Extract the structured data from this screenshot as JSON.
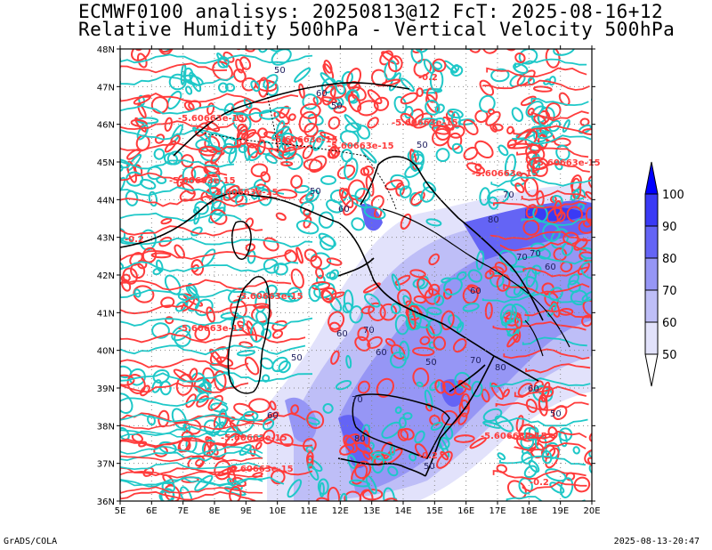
{
  "header": {
    "line1": "ECMWF0100 analisys: 20250813@12 FcT: 2025-08-16+12",
    "line2": "Relative Humidity 500hPa - Vertical Velocity 500hPa"
  },
  "footer": {
    "left": "GrADS/COLA",
    "right": "2025-08-13-20:47"
  },
  "map": {
    "lat_labels": [
      "48N",
      "47N",
      "46N",
      "45N",
      "44N",
      "43N",
      "42N",
      "41N",
      "40N",
      "39N",
      "38N",
      "37N",
      "36N"
    ],
    "lon_labels": [
      "5E",
      "6E",
      "7E",
      "8E",
      "9E",
      "10E",
      "11E",
      "12E",
      "13E",
      "14E",
      "15E",
      "16E",
      "17E",
      "18E",
      "19E",
      "20E"
    ],
    "colors": {
      "omega_neg": "#ff3b3b",
      "omega_pos": "#1ec8c8",
      "border": "#000000"
    }
  },
  "contour_labels": [
    {
      "text": "-5.60663e-15"
    },
    {
      "text": "-5.60663e-15"
    },
    {
      "text": "-5.60663e-15"
    },
    {
      "text": "-5.60663e-15"
    },
    {
      "text": "-5.60663e-15"
    },
    {
      "text": "-5.60663e-15"
    },
    {
      "text": "-5.60663e-15"
    },
    {
      "text": "-5.60663e-15"
    },
    {
      "text": "-5.60663e-15"
    },
    {
      "text": "-5.60663e-15"
    },
    {
      "text": "-5.60663e-15"
    },
    {
      "text": "-5.60663e-15"
    },
    {
      "text": "-5.60663e-15"
    },
    {
      "text": "-0.2"
    },
    {
      "text": "-0.2"
    },
    {
      "text": "-0.2"
    },
    {
      "text": "-0.2"
    }
  ],
  "rh_labels": [
    {
      "text": "50"
    },
    {
      "text": "50"
    },
    {
      "text": "50"
    },
    {
      "text": "50"
    },
    {
      "text": "60"
    },
    {
      "text": "60"
    },
    {
      "text": "70"
    },
    {
      "text": "70"
    },
    {
      "text": "80"
    },
    {
      "text": "70"
    },
    {
      "text": "60"
    },
    {
      "text": "60"
    },
    {
      "text": "70"
    },
    {
      "text": "50"
    },
    {
      "text": "60"
    },
    {
      "text": "70"
    },
    {
      "text": "80"
    },
    {
      "text": "50"
    },
    {
      "text": "60"
    },
    {
      "text": "50"
    },
    {
      "text": "60"
    },
    {
      "text": "70"
    },
    {
      "text": "80"
    },
    {
      "text": "50"
    },
    {
      "text": "60"
    }
  ],
  "colorbar": {
    "labels": [
      "100",
      "90",
      "80",
      "70",
      "60",
      "50"
    ],
    "colors": [
      "#0000ff",
      "#3a3af5",
      "#6464f5",
      "#9696f5",
      "#bebef7",
      "#e2e2fb"
    ]
  }
}
